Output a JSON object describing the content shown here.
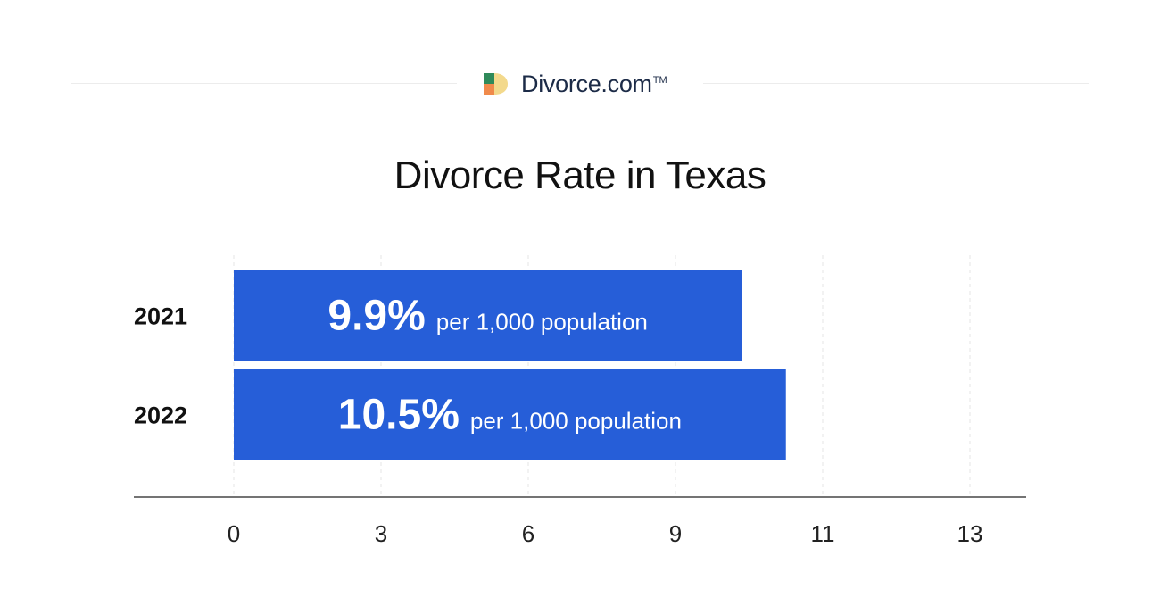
{
  "brand": {
    "name": "Divorce.com",
    "trademark": "TM",
    "logo_colors": {
      "green": "#2f8a5a",
      "orange": "#f08a4b",
      "yellow": "#f3d98c",
      "cream": "#f7e7b8"
    }
  },
  "chart_data": {
    "type": "bar",
    "orientation": "horizontal",
    "title": "Divorce Rate in Texas",
    "xlabel": "",
    "ylabel": "",
    "categories": [
      "2021",
      "2022"
    ],
    "values": [
      9.9,
      10.5
    ],
    "value_labels": [
      "9.9%",
      "10.5%"
    ],
    "value_suffix": "per 1,000 population",
    "x_ticks": [
      0,
      3,
      6,
      9,
      11,
      13
    ],
    "x_tick_labels": [
      "0",
      "3",
      "6",
      "9",
      "11",
      "13"
    ],
    "grid": "vertical dashed",
    "bar_color": "#265ed8"
  }
}
